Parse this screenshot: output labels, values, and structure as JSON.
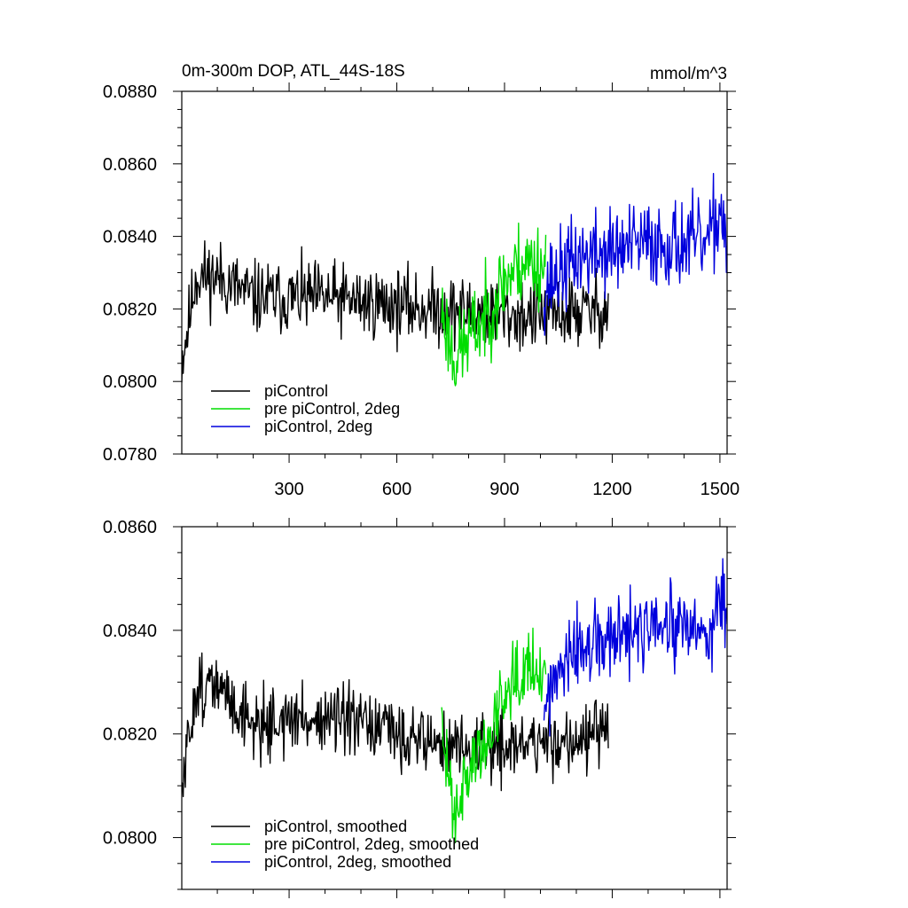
{
  "chart_data": [
    {
      "type": "line",
      "title": "0m-300m DOP, ATL_44S-18S",
      "unit_label": "mmol/m^3",
      "xlim": [
        1,
        1520
      ],
      "ylim": [
        0.078,
        0.088
      ],
      "y_major_ticks": [
        0.078,
        0.08,
        0.082,
        0.084,
        0.086,
        0.088
      ],
      "y_tick_labels": [
        "0.0780",
        "0.0800",
        "0.0820",
        "0.0840",
        "0.0860",
        "0.0880"
      ],
      "x_major_ticks": [
        300,
        600,
        900,
        1200,
        1500
      ],
      "x_tick_labels": [
        "300",
        "600",
        "900",
        "1200",
        "1500"
      ],
      "legend_placement": "bottom-left",
      "series": [
        {
          "name": "piControl",
          "color": "#000000",
          "x_start": 1,
          "x_end": 1190,
          "noise_amp": 0.00075,
          "seed": 11,
          "trend": [
            [
              1,
              0.0806
            ],
            [
              20,
              0.0816
            ],
            [
              40,
              0.0829
            ],
            [
              100,
              0.0829
            ],
            [
              200,
              0.0823
            ],
            [
              400,
              0.0823
            ],
            [
              600,
              0.0821
            ],
            [
              800,
              0.0819
            ],
            [
              950,
              0.0818
            ],
            [
              1100,
              0.0819
            ],
            [
              1190,
              0.082
            ]
          ]
        },
        {
          "name": "pre piControl, 2deg",
          "color": "#00dd00",
          "x_start": 725,
          "x_end": 1015,
          "noise_amp": 0.0009,
          "seed": 23,
          "trend": [
            [
              725,
              0.082
            ],
            [
              760,
              0.0806
            ],
            [
              800,
              0.0812
            ],
            [
              850,
              0.0818
            ],
            [
              900,
              0.0828
            ],
            [
              950,
              0.0833
            ],
            [
              1015,
              0.0832
            ]
          ]
        },
        {
          "name": "piControl, 2deg",
          "color": "#0000dd",
          "x_start": 1010,
          "x_end": 1520,
          "noise_amp": 0.0009,
          "seed": 37,
          "trend": [
            [
              1010,
              0.0826
            ],
            [
              1100,
              0.0834
            ],
            [
              1200,
              0.0836
            ],
            [
              1300,
              0.0838
            ],
            [
              1400,
              0.0838
            ],
            [
              1470,
              0.0838
            ],
            [
              1500,
              0.0848
            ],
            [
              1520,
              0.084
            ]
          ]
        }
      ]
    },
    {
      "type": "line",
      "title": "",
      "xlim": [
        1,
        1520
      ],
      "ylim": [
        0.079,
        0.086
      ],
      "y_major_ticks": [
        0.08,
        0.082,
        0.084,
        0.086
      ],
      "y_tick_labels": [
        "0.0800",
        "0.0820",
        "0.0840",
        "0.0860"
      ],
      "x_major_ticks": [
        300,
        600,
        900,
        1200,
        1500
      ],
      "x_tick_labels": [],
      "legend_placement": "bottom-left",
      "series": [
        {
          "name": "piControl, smoothed",
          "color": "#000000",
          "x_start": 1,
          "x_end": 1190,
          "noise_amp": 0.0005,
          "seed": 51,
          "trend": [
            [
              1,
              0.0808
            ],
            [
              15,
              0.0816
            ],
            [
              40,
              0.0829
            ],
            [
              100,
              0.0829
            ],
            [
              200,
              0.0822
            ],
            [
              400,
              0.0823
            ],
            [
              600,
              0.082
            ],
            [
              800,
              0.0817
            ],
            [
              950,
              0.0818
            ],
            [
              1100,
              0.0819
            ],
            [
              1190,
              0.082
            ]
          ]
        },
        {
          "name": "pre piControl, 2deg, smoothed",
          "color": "#00dd00",
          "x_start": 725,
          "x_end": 1015,
          "noise_amp": 0.00055,
          "seed": 63,
          "trend": [
            [
              725,
              0.082
            ],
            [
              760,
              0.0806
            ],
            [
              800,
              0.0813
            ],
            [
              850,
              0.0818
            ],
            [
              900,
              0.0829
            ],
            [
              950,
              0.0834
            ],
            [
              1015,
              0.0832
            ]
          ]
        },
        {
          "name": "piControl, 2deg, smoothed",
          "color": "#0000dd",
          "x_start": 1010,
          "x_end": 1520,
          "noise_amp": 0.0006,
          "seed": 77,
          "trend": [
            [
              1010,
              0.0826
            ],
            [
              1100,
              0.0836
            ],
            [
              1200,
              0.0838
            ],
            [
              1300,
              0.084
            ],
            [
              1400,
              0.084
            ],
            [
              1470,
              0.0838
            ],
            [
              1500,
              0.0849
            ],
            [
              1520,
              0.0841
            ]
          ]
        }
      ]
    }
  ]
}
